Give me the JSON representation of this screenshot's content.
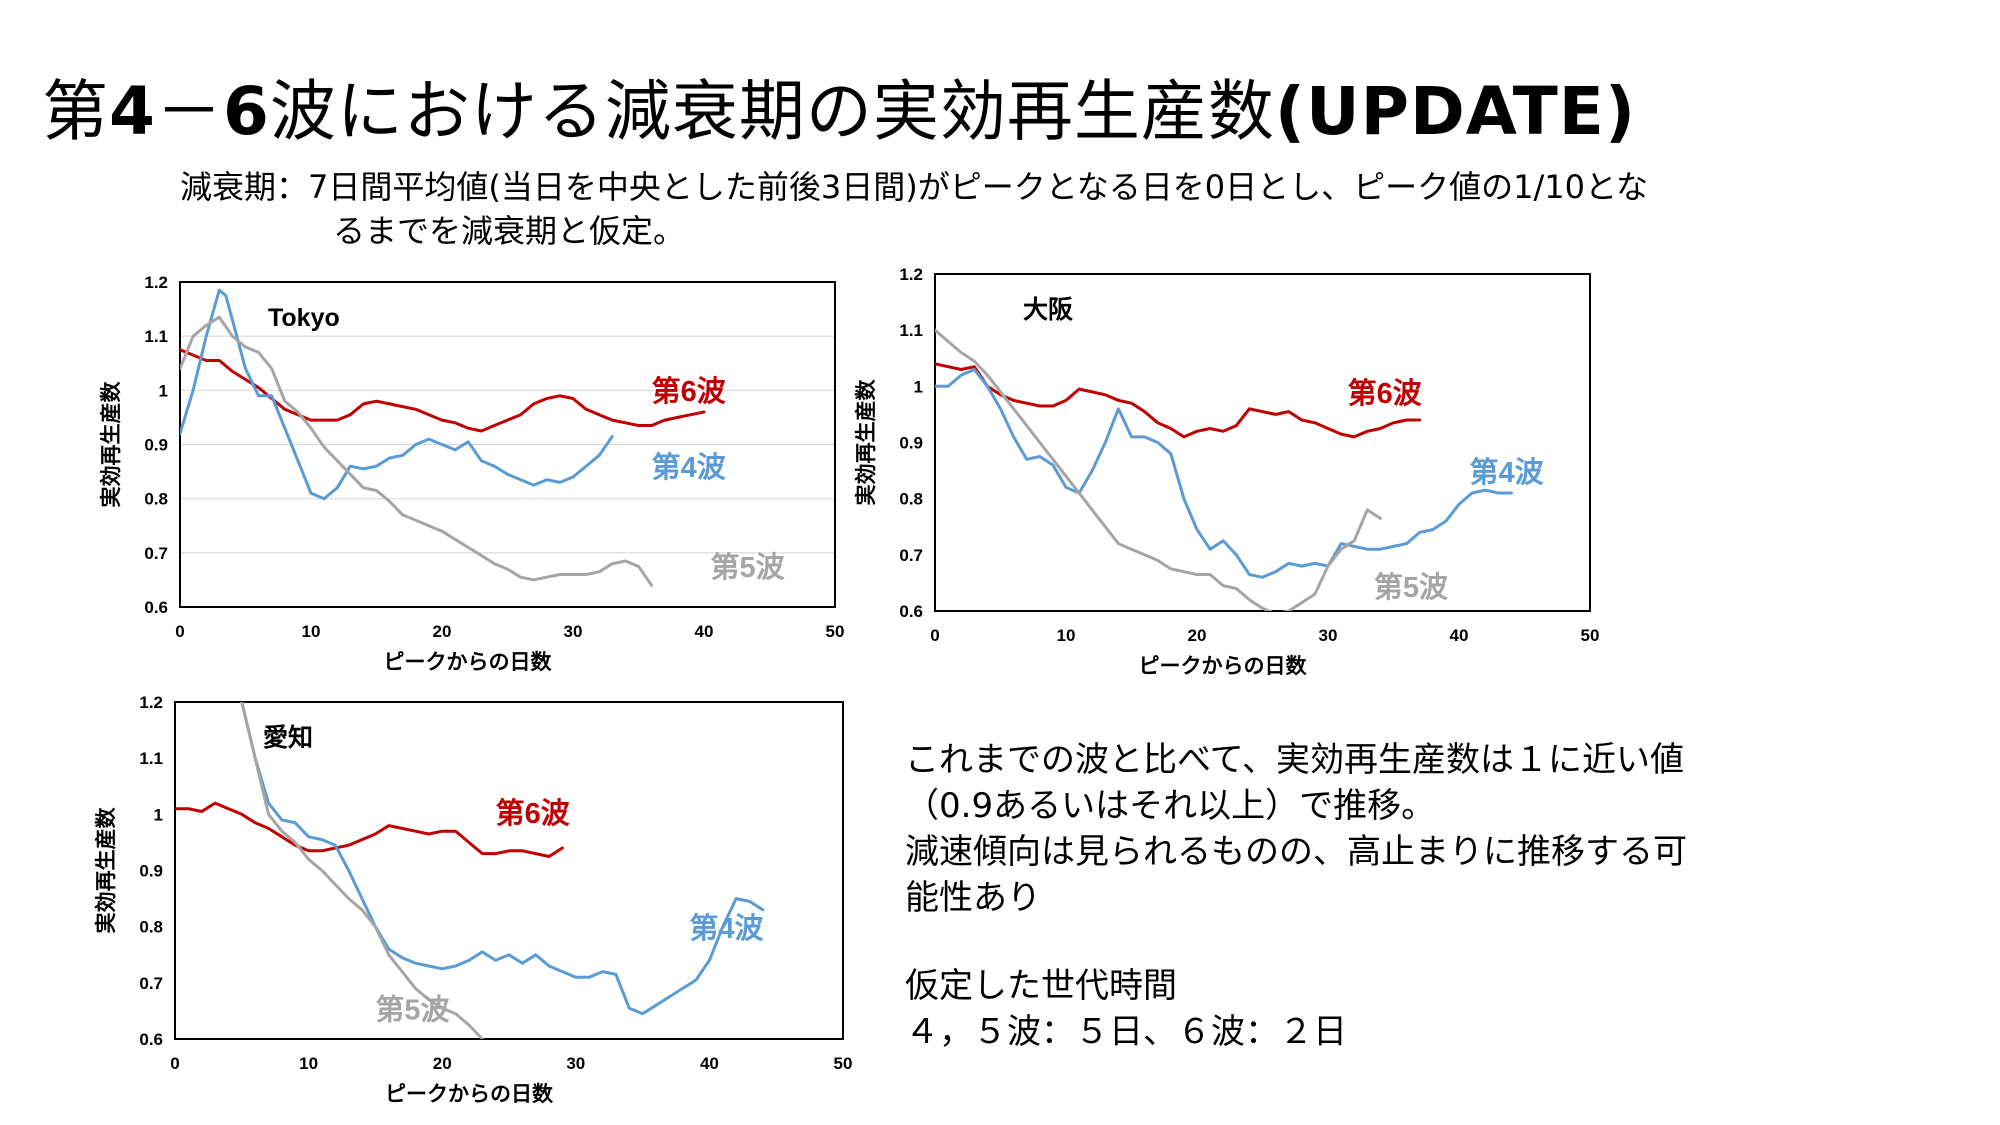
{
  "title": {
    "pre": "第",
    "bold1": "4",
    "mid": "－",
    "bold2": "6",
    "post": "波における減衰期の実効再生産数",
    "bold3": "(UPDATE)"
  },
  "subtitle": {
    "line1": "減衰期：7日間平均値(当日を中央とした前後3日間)がピークとなる日を0日とし、ピーク値の1/10とな",
    "line2": "るまでを減衰期と仮定。"
  },
  "notes": {
    "line1": "これまでの波と比べて、実効再生産数は１に近い値",
    "line2": "（0.9あるいはそれ以上）で推移。",
    "line3": "減速傾向は見られるものの、高止まりに推移する可",
    "line4": "能性あり",
    "line5": "仮定した世代時間",
    "line6": "４，５波：５日、６波：２日"
  },
  "colors": {
    "wave6": "#C00000",
    "wave4": "#5B9BD5",
    "wave5": "#A5A5A5",
    "axis": "#000000",
    "grid": "#D9D9D9"
  },
  "chart_data": [
    {
      "type": "line",
      "title": "Tokyo",
      "xlabel": "ピークからの日数",
      "ylabel": "実効再生産数",
      "xlim": [
        0,
        50
      ],
      "ylim": [
        0.6,
        1.2
      ],
      "xticks": [
        "0",
        "10",
        "20",
        "30",
        "40",
        "50"
      ],
      "yticks": [
        "0.6",
        "0.7",
        "0.8",
        "0.9",
        "1",
        "1.1",
        "1.2"
      ],
      "grid": true,
      "series": [
        {
          "name": "第6波",
          "color": "#C00000",
          "x": [
            0,
            1,
            2,
            3,
            4,
            5,
            6,
            7,
            8,
            9,
            10,
            11,
            12,
            13,
            14,
            15,
            16,
            17,
            18,
            19,
            20,
            21,
            22,
            23,
            24,
            25,
            26,
            27,
            28,
            29,
            30,
            31,
            32,
            33,
            34,
            35,
            36,
            37,
            38,
            39,
            40
          ],
          "y": [
            1.075,
            1.065,
            1.055,
            1.055,
            1.035,
            1.02,
            1.005,
            0.985,
            0.965,
            0.955,
            0.945,
            0.945,
            0.945,
            0.955,
            0.975,
            0.98,
            0.975,
            0.97,
            0.965,
            0.955,
            0.945,
            0.94,
            0.93,
            0.925,
            0.935,
            0.945,
            0.955,
            0.975,
            0.985,
            0.99,
            0.985,
            0.965,
            0.955,
            0.945,
            0.94,
            0.935,
            0.935,
            0.945,
            0.95,
            0.955,
            0.96
          ]
        },
        {
          "name": "第4波",
          "color": "#5B9BD5",
          "x": [
            0,
            1,
            2,
            3,
            3.5,
            4,
            5,
            6,
            7,
            8,
            9,
            10,
            11,
            12,
            13,
            14,
            15,
            16,
            17,
            18,
            19,
            20,
            21,
            22,
            23,
            24,
            25,
            26,
            27,
            28,
            29,
            30,
            31,
            32,
            33
          ],
          "y": [
            0.92,
            1.0,
            1.1,
            1.185,
            1.175,
            1.13,
            1.04,
            0.99,
            0.99,
            0.93,
            0.87,
            0.81,
            0.8,
            0.82,
            0.86,
            0.855,
            0.86,
            0.875,
            0.88,
            0.9,
            0.91,
            0.9,
            0.89,
            0.905,
            0.87,
            0.86,
            0.845,
            0.835,
            0.825,
            0.835,
            0.83,
            0.84,
            0.86,
            0.88,
            0.915
          ]
        },
        {
          "name": "第5波",
          "color": "#A5A5A5",
          "x": [
            0,
            1,
            2,
            3,
            4,
            5,
            6,
            7,
            8,
            9,
            10,
            11,
            12,
            13,
            14,
            15,
            16,
            17,
            18,
            19,
            20,
            21,
            22,
            23,
            24,
            25,
            26,
            27,
            28,
            29,
            30,
            31,
            32,
            33,
            34,
            35,
            36
          ],
          "y": [
            1.04,
            1.1,
            1.12,
            1.135,
            1.1,
            1.08,
            1.07,
            1.04,
            0.98,
            0.96,
            0.93,
            0.895,
            0.87,
            0.845,
            0.82,
            0.815,
            0.795,
            0.77,
            0.76,
            0.75,
            0.74,
            0.725,
            0.71,
            0.695,
            0.68,
            0.67,
            0.655,
            0.65,
            0.655,
            0.66,
            0.66,
            0.66,
            0.665,
            0.68,
            0.685,
            0.675,
            0.64
          ]
        }
      ],
      "labels": [
        {
          "text": "第6波",
          "series": "第6波",
          "x": 36,
          "y": 0.98
        },
        {
          "text": "第4波",
          "series": "第4波",
          "x": 36,
          "y": 0.84
        },
        {
          "text": "第5波",
          "series": "第5波",
          "x": 40.5,
          "y": 0.655
        }
      ]
    },
    {
      "type": "line",
      "title": "大阪",
      "xlabel": "ピークからの日数",
      "ylabel": "実効再生産数",
      "xlim": [
        0,
        50
      ],
      "ylim": [
        0.6,
        1.2
      ],
      "xticks": [
        "0",
        "10",
        "20",
        "30",
        "40",
        "50"
      ],
      "yticks": [
        "0.6",
        "0.7",
        "0.8",
        "0.9",
        "1",
        "1.1",
        "1.2"
      ],
      "grid": false,
      "series": [
        {
          "name": "第6波",
          "color": "#C00000",
          "x": [
            0,
            1,
            2,
            3,
            4,
            5,
            6,
            7,
            8,
            9,
            10,
            11,
            12,
            13,
            14,
            15,
            16,
            17,
            18,
            19,
            20,
            21,
            22,
            23,
            24,
            25,
            26,
            27,
            28,
            29,
            30,
            31,
            32,
            33,
            34,
            35,
            36,
            37
          ],
          "y": [
            1.04,
            1.035,
            1.03,
            1.035,
            1.0,
            0.985,
            0.975,
            0.97,
            0.965,
            0.965,
            0.975,
            0.995,
            0.99,
            0.985,
            0.975,
            0.97,
            0.955,
            0.935,
            0.925,
            0.91,
            0.92,
            0.925,
            0.92,
            0.93,
            0.96,
            0.955,
            0.95,
            0.955,
            0.94,
            0.935,
            0.925,
            0.915,
            0.91,
            0.92,
            0.925,
            0.935,
            0.94,
            0.94
          ]
        },
        {
          "name": "第4波",
          "color": "#5B9BD5",
          "x": [
            0,
            1,
            2,
            3,
            4,
            5,
            6,
            7,
            8,
            9,
            10,
            11,
            12,
            13,
            14,
            15,
            16,
            17,
            18,
            19,
            20,
            21,
            22,
            23,
            24,
            25,
            26,
            27,
            28,
            29,
            30,
            31,
            32,
            33,
            34,
            35,
            36,
            37,
            38,
            39,
            40,
            41,
            42,
            43,
            44
          ],
          "y": [
            1.0,
            1.0,
            1.02,
            1.03,
            1.0,
            0.96,
            0.91,
            0.87,
            0.875,
            0.86,
            0.82,
            0.81,
            0.85,
            0.9,
            0.96,
            0.91,
            0.91,
            0.9,
            0.88,
            0.8,
            0.745,
            0.71,
            0.725,
            0.7,
            0.665,
            0.66,
            0.67,
            0.685,
            0.68,
            0.685,
            0.68,
            0.72,
            0.715,
            0.71,
            0.71,
            0.715,
            0.72,
            0.74,
            0.745,
            0.76,
            0.79,
            0.81,
            0.815,
            0.81,
            0.81
          ]
        },
        {
          "name": "第5波",
          "color": "#A5A5A5",
          "x": [
            0,
            1,
            2,
            3,
            4,
            5,
            6,
            7,
            8,
            9,
            10,
            11,
            12,
            13,
            14,
            15,
            16,
            17,
            18,
            19,
            20,
            21,
            22,
            23,
            24,
            25,
            26,
            27,
            28,
            29,
            30,
            31,
            32,
            33,
            34
          ],
          "y": [
            1.1,
            1.08,
            1.06,
            1.045,
            1.02,
            0.99,
            0.96,
            0.93,
            0.9,
            0.87,
            0.84,
            0.81,
            0.78,
            0.75,
            0.72,
            0.71,
            0.7,
            0.69,
            0.675,
            0.67,
            0.665,
            0.665,
            0.645,
            0.64,
            0.62,
            0.605,
            0.595,
            0.6,
            0.615,
            0.63,
            0.68,
            0.71,
            0.725,
            0.78,
            0.765
          ]
        }
      ],
      "labels": [
        {
          "text": "第6波",
          "series": "第6波",
          "x": 31.5,
          "y": 0.97
        },
        {
          "text": "第4波",
          "series": "第4波",
          "x": 40.8,
          "y": 0.83
        },
        {
          "text": "第5波",
          "series": "第5波",
          "x": 33.5,
          "y": 0.625
        }
      ]
    },
    {
      "type": "line",
      "title": "愛知",
      "xlabel": "ピークからの日数",
      "ylabel": "実効再生産数",
      "xlim": [
        0,
        50
      ],
      "ylim": [
        0.6,
        1.2
      ],
      "xticks": [
        "0",
        "10",
        "20",
        "30",
        "40",
        "50"
      ],
      "yticks": [
        "0.6",
        "0.7",
        "0.8",
        "0.9",
        "1",
        "1.1",
        "1.2"
      ],
      "grid": false,
      "series": [
        {
          "name": "第6波",
          "color": "#C00000",
          "x": [
            0,
            1,
            2,
            3,
            4,
            5,
            6,
            7,
            8,
            9,
            10,
            11,
            12,
            13,
            14,
            15,
            16,
            17,
            18,
            19,
            20,
            21,
            22,
            23,
            24,
            25,
            26,
            27,
            28,
            29
          ],
          "y": [
            1.01,
            1.01,
            1.005,
            1.02,
            1.01,
            1.0,
            0.985,
            0.975,
            0.96,
            0.945,
            0.935,
            0.935,
            0.94,
            0.945,
            0.955,
            0.965,
            0.98,
            0.975,
            0.97,
            0.965,
            0.97,
            0.97,
            0.95,
            0.93,
            0.93,
            0.935,
            0.935,
            0.93,
            0.925,
            0.94
          ]
        },
        {
          "name": "第4波",
          "color": "#5B9BD5",
          "x": [
            5,
            6,
            7,
            8,
            9,
            10,
            11,
            12,
            13,
            14,
            15,
            16,
            17,
            18,
            19,
            20,
            21,
            22,
            23,
            24,
            25,
            26,
            27,
            28,
            29,
            30,
            31,
            32,
            33,
            34,
            35,
            36,
            37,
            38,
            39,
            40,
            41,
            42,
            43,
            44
          ],
          "y": [
            1.2,
            1.1,
            1.02,
            0.99,
            0.985,
            0.96,
            0.955,
            0.945,
            0.9,
            0.85,
            0.8,
            0.76,
            0.745,
            0.735,
            0.73,
            0.725,
            0.73,
            0.74,
            0.755,
            0.74,
            0.75,
            0.735,
            0.75,
            0.73,
            0.72,
            0.71,
            0.71,
            0.72,
            0.715,
            0.655,
            0.645,
            0.66,
            0.675,
            0.69,
            0.705,
            0.74,
            0.8,
            0.85,
            0.845,
            0.83
          ]
        },
        {
          "name": "第5波",
          "color": "#A5A5A5",
          "x": [
            5,
            6,
            7,
            8,
            9,
            10,
            11,
            12,
            13,
            14,
            15,
            16,
            17,
            18,
            19,
            20,
            21,
            22,
            23
          ],
          "y": [
            1.2,
            1.1,
            1.0,
            0.97,
            0.95,
            0.92,
            0.9,
            0.875,
            0.85,
            0.83,
            0.8,
            0.75,
            0.72,
            0.69,
            0.67,
            0.655,
            0.645,
            0.625,
            0.6
          ]
        }
      ],
      "labels": [
        {
          "text": "第6波",
          "series": "第6波",
          "x": 24,
          "y": 0.985
        },
        {
          "text": "第4波",
          "series": "第4波",
          "x": 38.5,
          "y": 0.78
        },
        {
          "text": "第5波",
          "series": "第5波",
          "x": 15,
          "y": 0.635
        }
      ]
    }
  ]
}
